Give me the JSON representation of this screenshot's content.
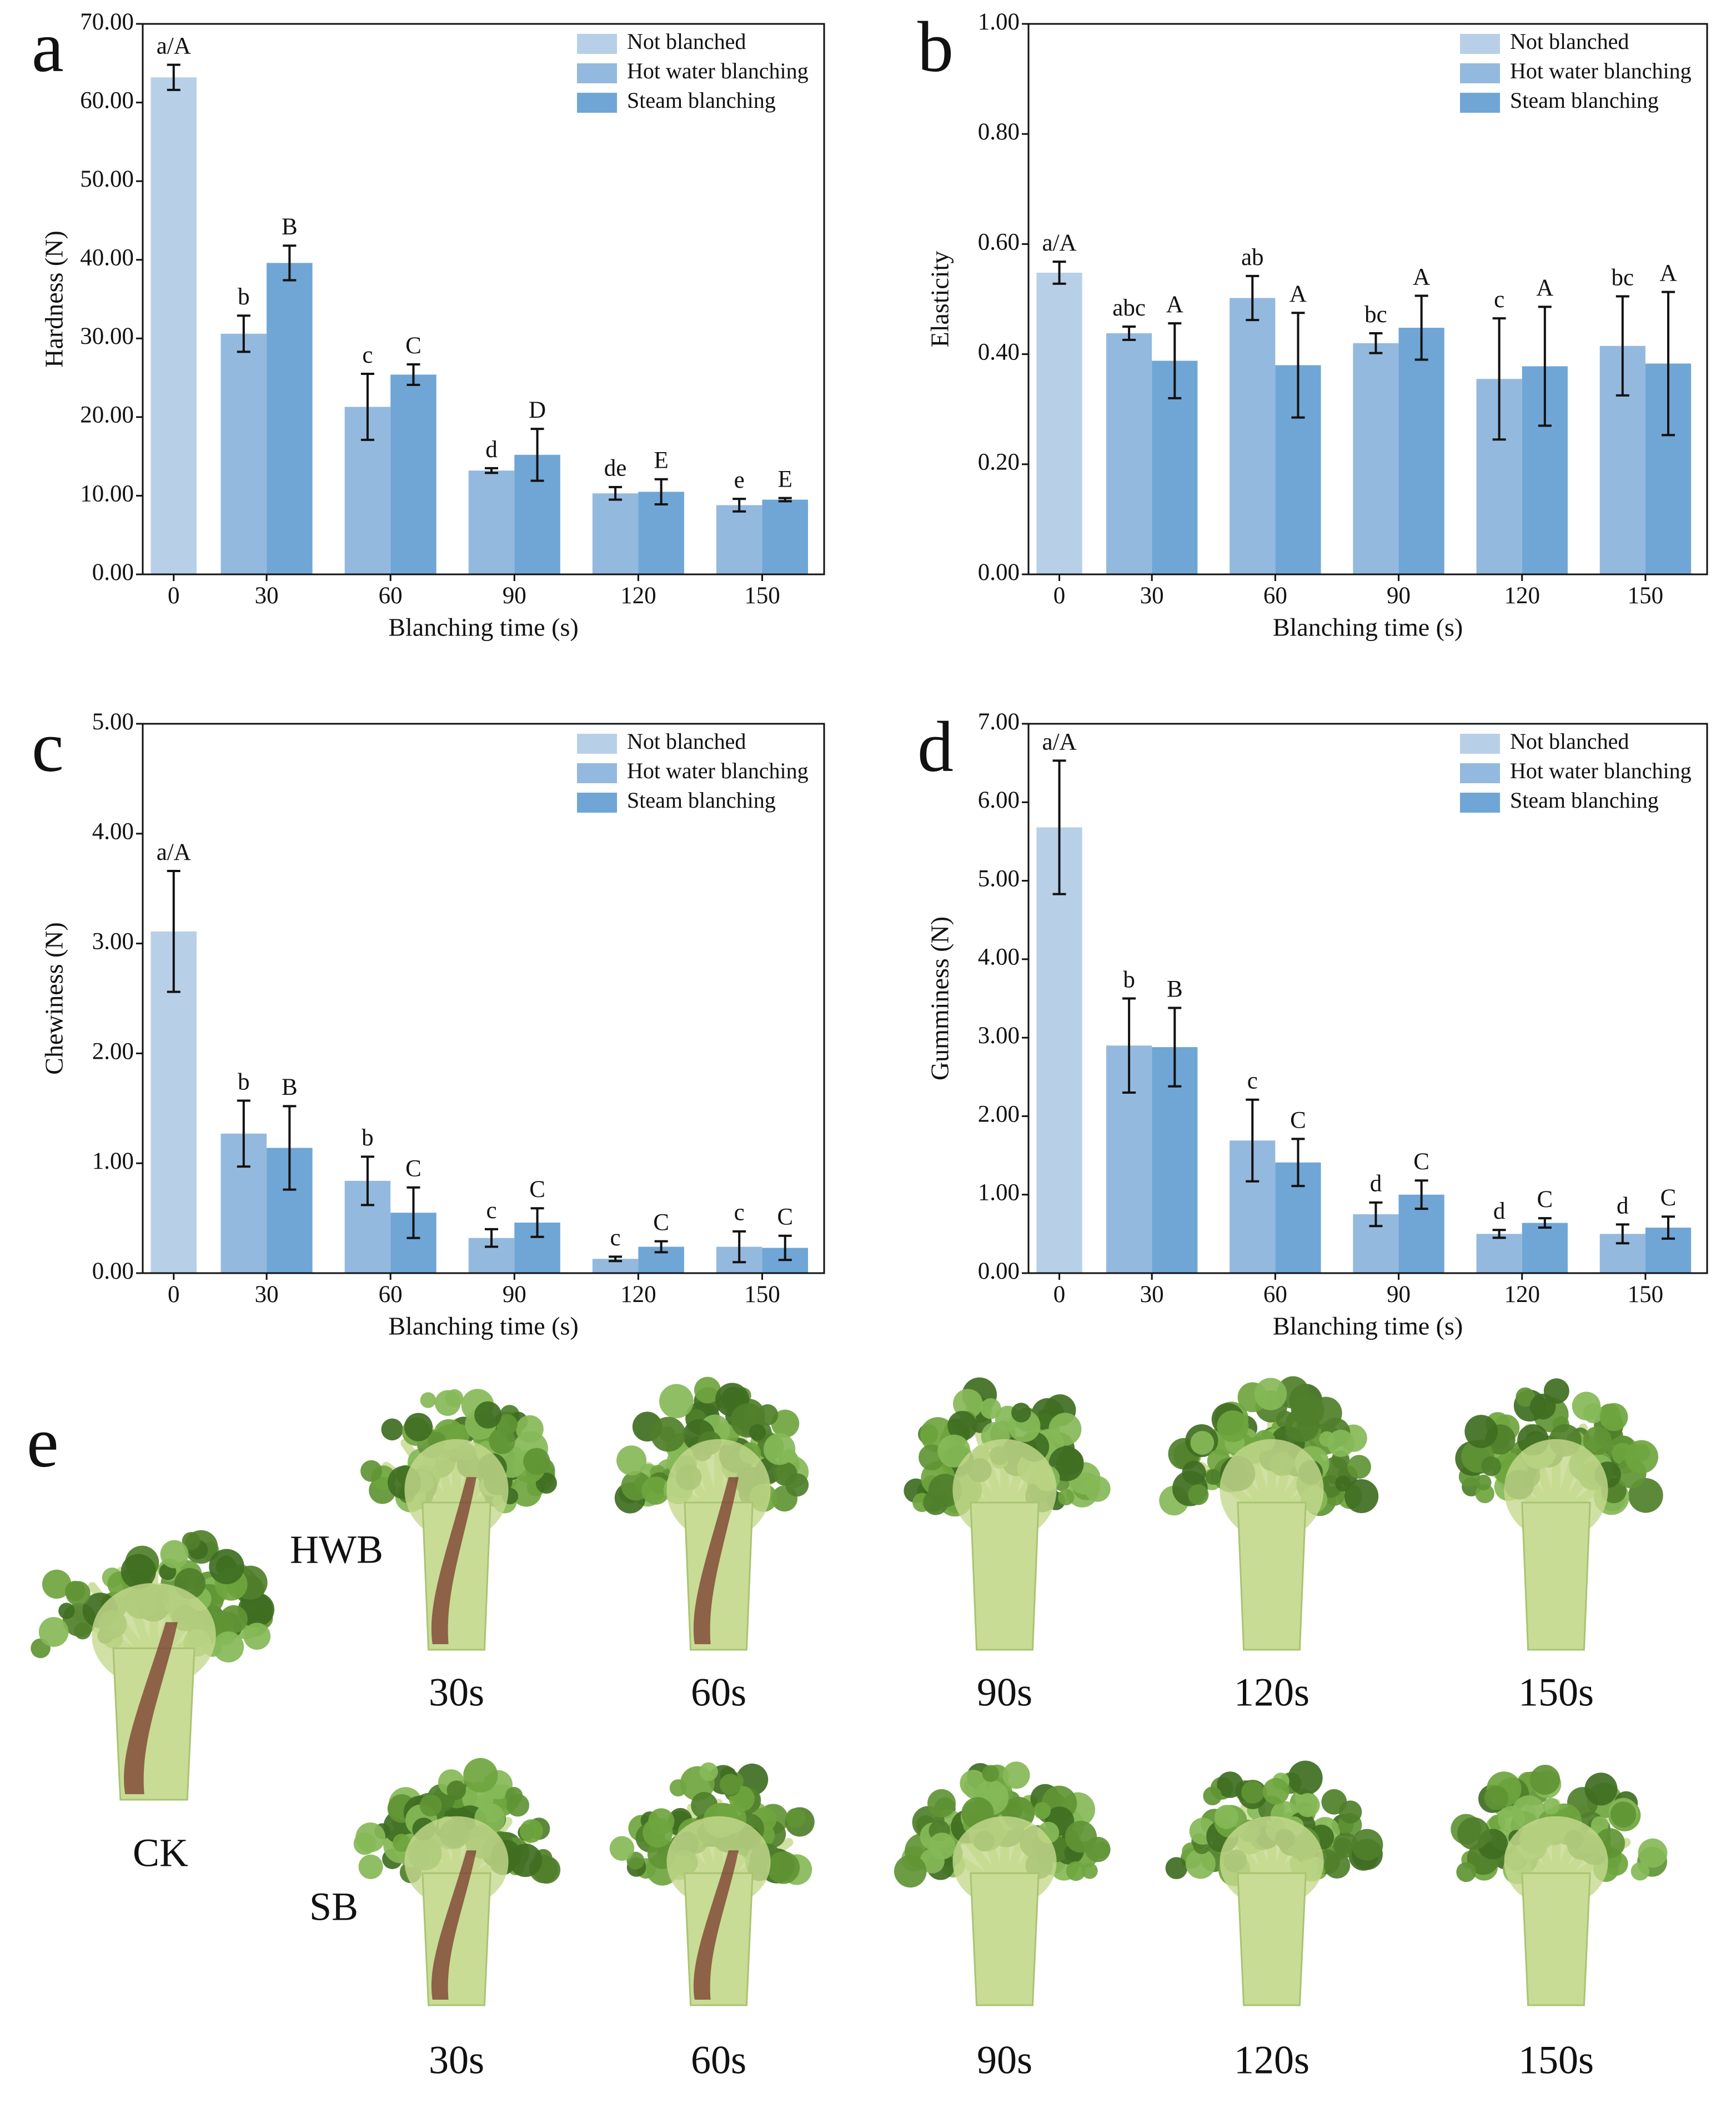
{
  "chart_data": [
    {
      "type": "bar",
      "panel": "a",
      "ylabel": "Hardness (N)",
      "xlabel": "Blanching time (s)",
      "categories": [
        "0",
        "30",
        "60",
        "90",
        "120",
        "150"
      ],
      "ylim": [
        0,
        70
      ],
      "yticks": [
        {
          "value": 0,
          "label": "0.00"
        },
        {
          "value": 10,
          "label": "10.00"
        },
        {
          "value": 20,
          "label": "20.00"
        },
        {
          "value": 30,
          "label": "30.00"
        },
        {
          "value": 40,
          "label": "40.00"
        },
        {
          "value": 50,
          "label": "50.00"
        },
        {
          "value": 60,
          "label": "60.00"
        },
        {
          "value": 70,
          "label": "70.00"
        }
      ],
      "legend": "upper right",
      "series": [
        {
          "name": "Not blanched",
          "color": "#b8cfe8",
          "values": [
            63.2,
            null,
            null,
            null,
            null,
            null
          ],
          "errors": [
            1.6,
            null,
            null,
            null,
            null,
            null
          ],
          "annotations": [
            "a/A",
            null,
            null,
            null,
            null,
            null
          ]
        },
        {
          "name": "Hot water blanching",
          "color": "#94b9de",
          "values": [
            null,
            30.6,
            21.3,
            13.2,
            10.3,
            8.8
          ],
          "errors": [
            null,
            2.3,
            4.2,
            0.3,
            0.8,
            0.8
          ],
          "annotations": [
            null,
            "b",
            "c",
            "d",
            "de",
            "e"
          ]
        },
        {
          "name": "Steam blanching",
          "color": "#6fa6d5",
          "values": [
            null,
            39.6,
            25.4,
            15.2,
            10.5,
            9.5
          ],
          "errors": [
            null,
            2.2,
            1.3,
            3.3,
            1.6,
            0.2
          ],
          "annotations": [
            null,
            "B",
            "C",
            "D",
            "E",
            "E"
          ]
        }
      ]
    },
    {
      "type": "bar",
      "panel": "b",
      "ylabel": "Elasticity",
      "xlabel": "Blanching time (s)",
      "categories": [
        "0",
        "30",
        "60",
        "90",
        "120",
        "150"
      ],
      "ylim": [
        0,
        1
      ],
      "yticks": [
        {
          "value": 0,
          "label": "0.00"
        },
        {
          "value": 0.2,
          "label": "0.20"
        },
        {
          "value": 0.4,
          "label": "0.40"
        },
        {
          "value": 0.6,
          "label": "0.60"
        },
        {
          "value": 0.8,
          "label": "0.80"
        },
        {
          "value": 1,
          "label": "1.00"
        }
      ],
      "legend": "upper right",
      "series": [
        {
          "name": "Not blanched",
          "color": "#b8cfe8",
          "values": [
            0.548,
            null,
            null,
            null,
            null,
            null
          ],
          "errors": [
            0.02,
            null,
            null,
            null,
            null,
            null
          ],
          "annotations": [
            "a/A",
            null,
            null,
            null,
            null,
            null
          ]
        },
        {
          "name": "Hot water blanching",
          "color": "#94b9de",
          "values": [
            null,
            0.438,
            0.502,
            0.42,
            0.355,
            0.415
          ],
          "errors": [
            null,
            0.012,
            0.04,
            0.018,
            0.11,
            0.09
          ],
          "annotations": [
            null,
            "abc",
            "ab",
            "bc",
            "c",
            "bc"
          ]
        },
        {
          "name": "Steam blanching",
          "color": "#6fa6d5",
          "values": [
            null,
            0.388,
            0.38,
            0.448,
            0.378,
            0.383
          ],
          "errors": [
            null,
            0.068,
            0.095,
            0.058,
            0.108,
            0.13
          ],
          "annotations": [
            null,
            "A",
            "A",
            "A",
            "A",
            "A"
          ]
        }
      ]
    },
    {
      "type": "bar",
      "panel": "c",
      "ylabel": "Chewiness (N)",
      "xlabel": "Blanching time (s)",
      "categories": [
        "0",
        "30",
        "60",
        "90",
        "120",
        "150"
      ],
      "ylim": [
        0,
        5
      ],
      "yticks": [
        {
          "value": 0,
          "label": "0.00"
        },
        {
          "value": 1,
          "label": "1.00"
        },
        {
          "value": 2,
          "label": "2.00"
        },
        {
          "value": 3,
          "label": "3.00"
        },
        {
          "value": 4,
          "label": "4.00"
        },
        {
          "value": 5,
          "label": "5.00"
        }
      ],
      "legend": "upper right",
      "series": [
        {
          "name": "Not blanched",
          "color": "#b8cfe8",
          "values": [
            3.11,
            null,
            null,
            null,
            null,
            null
          ],
          "errors": [
            0.55,
            null,
            null,
            null,
            null,
            null
          ],
          "annotations": [
            "a/A",
            null,
            null,
            null,
            null,
            null
          ]
        },
        {
          "name": "Hot water blanching",
          "color": "#94b9de",
          "values": [
            null,
            1.27,
            0.84,
            0.32,
            0.13,
            0.24
          ],
          "errors": [
            null,
            0.3,
            0.22,
            0.08,
            0.02,
            0.14
          ],
          "annotations": [
            null,
            "b",
            "b",
            "c",
            "c",
            "c"
          ]
        },
        {
          "name": "Steam blanching",
          "color": "#6fa6d5",
          "values": [
            null,
            1.14,
            0.55,
            0.46,
            0.24,
            0.23
          ],
          "errors": [
            null,
            0.38,
            0.23,
            0.13,
            0.05,
            0.11
          ],
          "annotations": [
            null,
            "B",
            "C",
            "C",
            "C",
            "C"
          ]
        }
      ]
    },
    {
      "type": "bar",
      "panel": "d",
      "ylabel": "Gumminess (N)",
      "xlabel": "Blanching time (s)",
      "categories": [
        "0",
        "30",
        "60",
        "90",
        "120",
        "150"
      ],
      "ylim": [
        0,
        7
      ],
      "yticks": [
        {
          "value": 0,
          "label": "0.00"
        },
        {
          "value": 1,
          "label": "1.00"
        },
        {
          "value": 2,
          "label": "2.00"
        },
        {
          "value": 3,
          "label": "3.00"
        },
        {
          "value": 4,
          "label": "4.00"
        },
        {
          "value": 5,
          "label": "5.00"
        },
        {
          "value": 6,
          "label": "6.00"
        },
        {
          "value": 7,
          "label": "7.00"
        }
      ],
      "legend": "upper right",
      "series": [
        {
          "name": "Not blanched",
          "color": "#b8cfe8",
          "values": [
            5.68,
            null,
            null,
            null,
            null,
            null
          ],
          "errors": [
            0.85,
            null,
            null,
            null,
            null,
            null
          ],
          "annotations": [
            "a/A",
            null,
            null,
            null,
            null,
            null
          ]
        },
        {
          "name": "Hot water blanching",
          "color": "#94b9de",
          "values": [
            null,
            2.9,
            1.69,
            0.75,
            0.5,
            0.5
          ],
          "errors": [
            null,
            0.6,
            0.52,
            0.15,
            0.05,
            0.12
          ],
          "annotations": [
            null,
            "b",
            "c",
            "d",
            "d",
            "d"
          ]
        },
        {
          "name": "Steam blanching",
          "color": "#6fa6d5",
          "values": [
            null,
            2.88,
            1.41,
            1.0,
            0.64,
            0.58
          ],
          "errors": [
            null,
            0.5,
            0.3,
            0.18,
            0.06,
            0.14
          ],
          "annotations": [
            null,
            "B",
            "C",
            "C",
            "C",
            "C"
          ]
        }
      ]
    }
  ],
  "photo_panel": {
    "label": "e",
    "control": "CK",
    "rows": [
      {
        "label": "HWB",
        "times": [
          "30s",
          "60s",
          "90s",
          "120s",
          "150s"
        ]
      },
      {
        "label": "SB",
        "times": [
          "30s",
          "60s",
          "90s",
          "120s",
          "150s"
        ]
      }
    ]
  }
}
